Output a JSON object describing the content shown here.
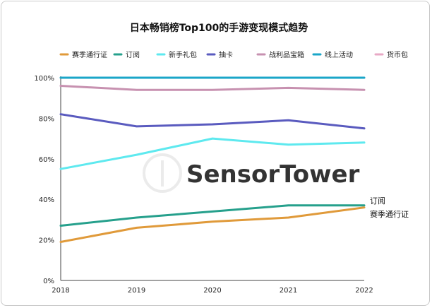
{
  "chart_data": {
    "type": "line",
    "title": "日本畅销榜Top100的手游变现模式趋势",
    "watermark": "SensorTower",
    "x": [
      "2018",
      "2019",
      "2020",
      "2021",
      "2022"
    ],
    "ylim": [
      0,
      100
    ],
    "yticks": [
      "0%",
      "20%",
      "40%",
      "60%",
      "80%",
      "100%"
    ],
    "grid": false,
    "legend_position": "top",
    "series": [
      {
        "name": "赛季通行证",
        "color": "#e09a3a",
        "values": [
          19,
          26,
          29,
          31,
          36
        ],
        "end_label": "赛季通行证"
      },
      {
        "name": "订阅",
        "color": "#26a08c",
        "values": [
          27,
          31,
          34,
          37,
          37
        ],
        "end_label": "订阅"
      },
      {
        "name": "新手礼包",
        "color": "#5ee9ef",
        "values": [
          55,
          62,
          70,
          67,
          68
        ]
      },
      {
        "name": "抽卡",
        "color": "#5a5bbf",
        "values": [
          82,
          76,
          77,
          79,
          75
        ]
      },
      {
        "name": "战利品宝箱",
        "color": "#c791b0",
        "values": [
          96,
          94,
          94,
          95,
          94
        ]
      },
      {
        "name": "线上活动",
        "color": "#1aa6c8",
        "values": [
          100,
          100,
          100,
          100,
          100
        ]
      },
      {
        "name": "货币包",
        "color": "#e8a9c6",
        "values": [
          100,
          100,
          100,
          100,
          100
        ]
      }
    ]
  }
}
